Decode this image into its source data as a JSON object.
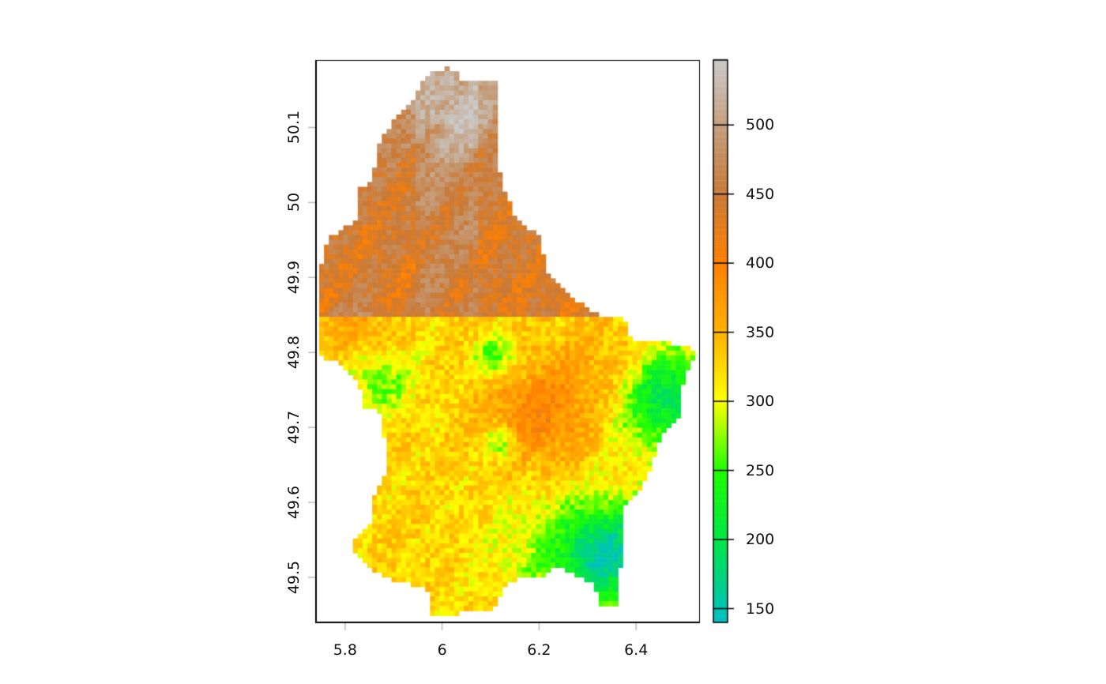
{
  "chart_data": {
    "type": "heatmap",
    "title": "",
    "xlabel": "",
    "ylabel": "",
    "x_ticks": [
      "5.8",
      "6",
      "6.2",
      "6.4"
    ],
    "y_ticks": [
      "49.5",
      "49.6",
      "49.7",
      "49.8",
      "49.9",
      "50",
      "50.1"
    ],
    "xlim": [
      5.74,
      6.53
    ],
    "ylim": [
      49.44,
      50.19
    ],
    "legend": {
      "placement": "right",
      "ticks": [
        "150",
        "200",
        "250",
        "300",
        "350",
        "400",
        "450",
        "500"
      ],
      "range": [
        140,
        547
      ],
      "colors": {
        "140": "#00BFC4",
        "200": "#00E645",
        "250": "#22FF00",
        "300": "#FFFF00",
        "350": "#FFB000",
        "400": "#FF8000",
        "450": "#C97A38",
        "500": "#C4A080",
        "547": "#CACACA"
      }
    },
    "description_values": {
      "north_elevation": [
        430,
        540
      ],
      "south_elevation": [
        280,
        380
      ],
      "east_valley_elevation": [
        140,
        250
      ]
    }
  }
}
